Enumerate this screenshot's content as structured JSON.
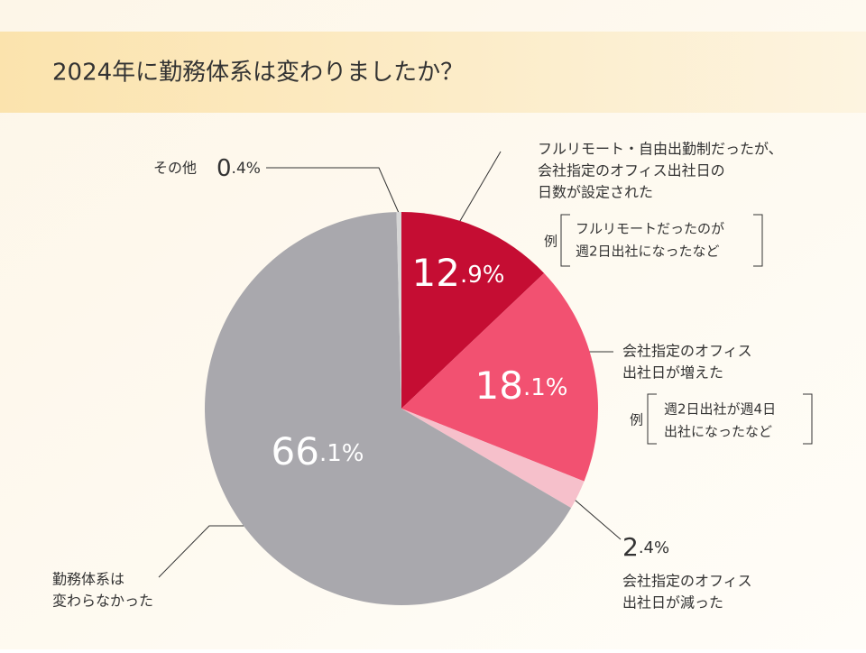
{
  "chart_data": {
    "type": "pie",
    "title": "2024年に勤務体系は変わりましたか？",
    "categories": [
      [
        "フルリモート・自由出勤制だったが、",
        "会社指定のオフィス出社日の",
        "日数が設定された"
      ],
      [
        "会社指定のオフィス",
        "出社日が増えた"
      ],
      [
        "会社指定のオフィス",
        "出社日が減った"
      ],
      [
        "勤務体系は",
        "変わらなかった"
      ],
      [
        "その他"
      ]
    ],
    "values": [
      12.9,
      18.1,
      2.4,
      66.1,
      0.4
    ],
    "value_labels": [
      "12.9%",
      "18.1%",
      "2.4%",
      "66.1%",
      "0.4%"
    ],
    "colors": [
      "#c50d33",
      "#f25171",
      "#f6c0cb",
      "#a9a8ad",
      "#d6d6d6"
    ],
    "annotations": [
      {
        "prefix": "例",
        "lines": [
          "フルリモートだったのが",
          "週2日出社になったなど"
        ]
      },
      {
        "prefix": "例",
        "lines": [
          "週2日出社が週4日",
          "出社になったなど"
        ]
      }
    ]
  }
}
